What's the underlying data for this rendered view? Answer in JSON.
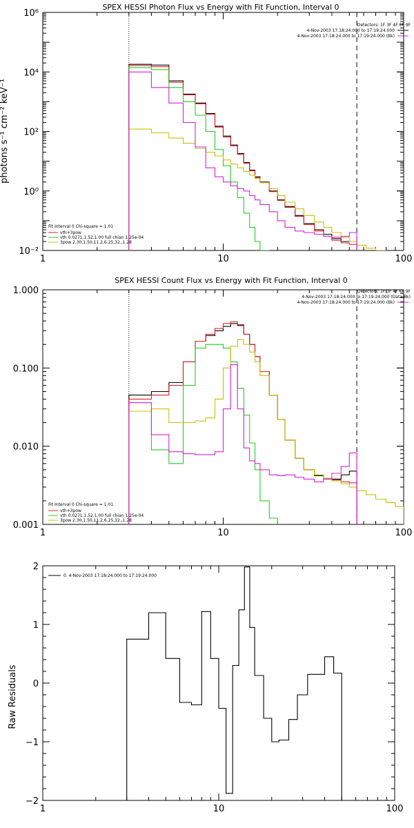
{
  "colors": {
    "black": "#000000",
    "red": "#e0202a",
    "magenta": "#d81fd8",
    "green": "#22cc22",
    "yellow": "#c8c000"
  },
  "chart_data": [
    {
      "type": "line",
      "title": "SPEX HESSI Photon Flux vs Energy with Fit Function, Interval 0",
      "ylabel": "photons s⁻¹ cm⁻² keV⁻¹",
      "xscale": "log",
      "yscale": "log",
      "xlim": [
        1,
        100
      ],
      "ylim": [
        0.01,
        1000000
      ],
      "x_ticks": [
        "1",
        "10",
        "100"
      ],
      "y_ticks": [
        "10⁻²",
        "10⁰",
        "10²",
        "10⁴",
        "10⁶"
      ],
      "header_lines": [
        "Detectors: 1F 3F 4F 6F 9F",
        "4-Nov-2003 17:18:24.000 to 17:19:24.000",
        "4-Nov-2003 17:18:24.000 to 17:19:24.000 (Bk)"
      ],
      "fit_lines": [
        "Fit Interval 0   Chi-square = 1.01",
        "vth+3pow",
        "vth 0.0271,1.52,1.00  full chian 1.25e-04",
        "3pow 2.30,1.50,11.2,6.25,32.,1.28"
      ],
      "vlines": [
        {
          "x": 3,
          "style": "dotted"
        },
        {
          "x": 55,
          "style": "dashed"
        }
      ],
      "edges": [
        3,
        4,
        5,
        6,
        7,
        8,
        9,
        10,
        11,
        12,
        13,
        14,
        15,
        16,
        18,
        20,
        22,
        25,
        28,
        32,
        36,
        40,
        45,
        50,
        55,
        62,
        70,
        80
      ],
      "series": [
        {
          "name": "",
          "color": "#000000",
          "values": [
            18000,
            17000,
            5000,
            1800,
            900,
            400,
            150,
            70,
            35,
            18,
            9,
            5,
            3,
            2,
            1,
            0.5,
            0.3,
            0.15,
            0.08,
            0.05,
            0.035,
            0.025,
            0.02,
            0.02
          ]
        },
        {
          "name": "vth+3pow",
          "color": "#e0202a",
          "values": [
            16500,
            15000,
            4500,
            1700,
            850,
            380,
            140,
            65,
            33,
            17,
            8.5,
            4.8,
            2.8,
            1.9,
            0.95,
            0.48,
            0.28,
            0.14,
            0.075,
            0.045,
            0.03,
            0.022,
            0.018,
            0.016
          ]
        },
        {
          "name": "vth",
          "color": "#22cc22",
          "values": [
            14000,
            12000,
            3000,
            1000,
            350,
            100,
            25,
            7,
            2,
            0.6,
            0.18,
            0.06,
            0.02,
            0.01
          ]
        },
        {
          "name": "3pow",
          "color": "#c8c000",
          "values": [
            120,
            90,
            60,
            40,
            27,
            20,
            15,
            11,
            8,
            6,
            4.5,
            3.4,
            2.6,
            1.9,
            1.2,
            0.7,
            0.42,
            0.25,
            0.15,
            0.09,
            0.06,
            0.04,
            0.027,
            0.02,
            0.015,
            0.012,
            0.009
          ]
        },
        {
          "name": "",
          "color": "#d81fd8",
          "values": [
            10000,
            3000,
            900,
            200,
            30,
            6,
            3,
            2,
            1.5,
            1.2,
            1,
            0.7,
            0.5,
            0.35,
            0.2,
            0.1,
            0.06,
            0.045,
            0.04,
            0.035,
            0.03,
            0.028,
            0.03,
            0.04
          ]
        }
      ]
    },
    {
      "type": "line",
      "title": "SPEX HESSI Count Flux vs Energy with Fit Function, Interval 0",
      "xscale": "log",
      "yscale": "log",
      "xlim": [
        1,
        100
      ],
      "ylim": [
        0.001,
        1
      ],
      "x_ticks": [
        "1",
        "10",
        "100"
      ],
      "y_ticks": [
        "0.001",
        "0.010",
        "0.100",
        "1.000"
      ],
      "header_lines": [
        "Detectors: 1F 3F 4F 6F 9F",
        "4-Nov-2003 17:18:24.000 to 17:19:24.000 (Data-Bk)",
        "4-Nov-2003 17:18:24.000 to 17:19:24.000 (Bk)"
      ],
      "fit_lines": [
        "Fit Interval 0   Chi-square = 1.01",
        "vth+3pow",
        "vth 0.0271,1.52,1.00  full chian 1.25e-04",
        "3pow 2.30,1.50,11.2,6.25,32.,1.28"
      ],
      "vlines": [
        {
          "x": 3,
          "style": "dotted"
        },
        {
          "x": 55,
          "style": "dashed"
        }
      ],
      "edges": [
        3,
        4,
        5,
        6,
        7,
        8,
        9,
        10,
        11,
        12,
        13,
        14,
        15,
        16,
        18,
        20,
        22,
        25,
        28,
        32,
        36,
        40,
        45,
        50,
        55,
        62,
        70,
        80,
        90,
        100
      ],
      "series": [
        {
          "name": "",
          "color": "#000000",
          "values": [
            0.045,
            0.05,
            0.065,
            0.12,
            0.22,
            0.26,
            0.3,
            0.34,
            0.37,
            0.35,
            0.27,
            0.2,
            0.14,
            0.09,
            0.045,
            0.022,
            0.012,
            0.007,
            0.005,
            0.0042,
            0.0038,
            0.0038,
            0.0043,
            0.0048
          ]
        },
        {
          "name": "vth+3pow",
          "color": "#e0202a",
          "values": [
            0.04,
            0.045,
            0.06,
            0.12,
            0.22,
            0.27,
            0.32,
            0.37,
            0.39,
            0.36,
            0.27,
            0.2,
            0.14,
            0.09,
            0.045,
            0.022,
            0.012,
            0.007,
            0.005,
            0.0043,
            0.0039,
            0.0037,
            0.0035,
            0.0034
          ]
        },
        {
          "name": "vth",
          "color": "#22cc22",
          "values": [
            0.028,
            0.009,
            0.006,
            0.06,
            0.18,
            0.2,
            0.2,
            0.18,
            0.12,
            0.055,
            0.025,
            0.011,
            0.005,
            0.002,
            0.0012
          ]
        },
        {
          "name": "3pow",
          "color": "#c8c000",
          "values": [
            0.028,
            0.03,
            0.02,
            0.02,
            0.021,
            0.023,
            0.04,
            0.1,
            0.19,
            0.23,
            0.2,
            0.16,
            0.12,
            0.08,
            0.045,
            0.022,
            0.012,
            0.007,
            0.005,
            0.0043,
            0.0039,
            0.0036,
            0.0033,
            0.003,
            0.0027,
            0.0024,
            0.0021,
            0.0019,
            0.0017
          ]
        },
        {
          "name": "",
          "color": "#d81fd8",
          "values": [
            0.036,
            0.014,
            0.0085,
            0.008,
            0.0078,
            0.0078,
            0.0085,
            0.03,
            0.11,
            0.03,
            0.0095,
            0.0065,
            0.006,
            0.005,
            0.0043,
            0.0042,
            0.0043,
            0.004,
            0.0038,
            0.0035,
            0.0038,
            0.0045,
            0.0055,
            0.0082
          ]
        }
      ]
    },
    {
      "type": "line",
      "ylabel": "Raw Residuals",
      "xscale": "log",
      "yscale": "linear",
      "xlim": [
        1,
        100
      ],
      "ylim": [
        -2,
        2
      ],
      "x_ticks": [
        "1",
        "10",
        "100"
      ],
      "y_ticks": [
        "−2",
        "−1",
        "0",
        "1",
        "2"
      ],
      "legend_line": "0. 4-Nov-2003 17:18:24.000 to 17:19:24.000",
      "edges": [
        3,
        4,
        5,
        6,
        7,
        8,
        9,
        10,
        11,
        12,
        13,
        14,
        15,
        16,
        18,
        20,
        22,
        25,
        28,
        32,
        36,
        40,
        45,
        50,
        55
      ],
      "series": [
        {
          "name": "0.",
          "color": "#000000",
          "values": [
            0.75,
            1.2,
            0.42,
            -0.33,
            -0.37,
            1.22,
            0.42,
            -0.43,
            -1.88,
            0.3,
            1.25,
            1.98,
            0.95,
            0.13,
            -0.6,
            -1.0,
            -0.97,
            -0.62,
            -0.2,
            0.15,
            0.15,
            0.45,
            0.17,
            -2.0
          ]
        }
      ]
    }
  ]
}
